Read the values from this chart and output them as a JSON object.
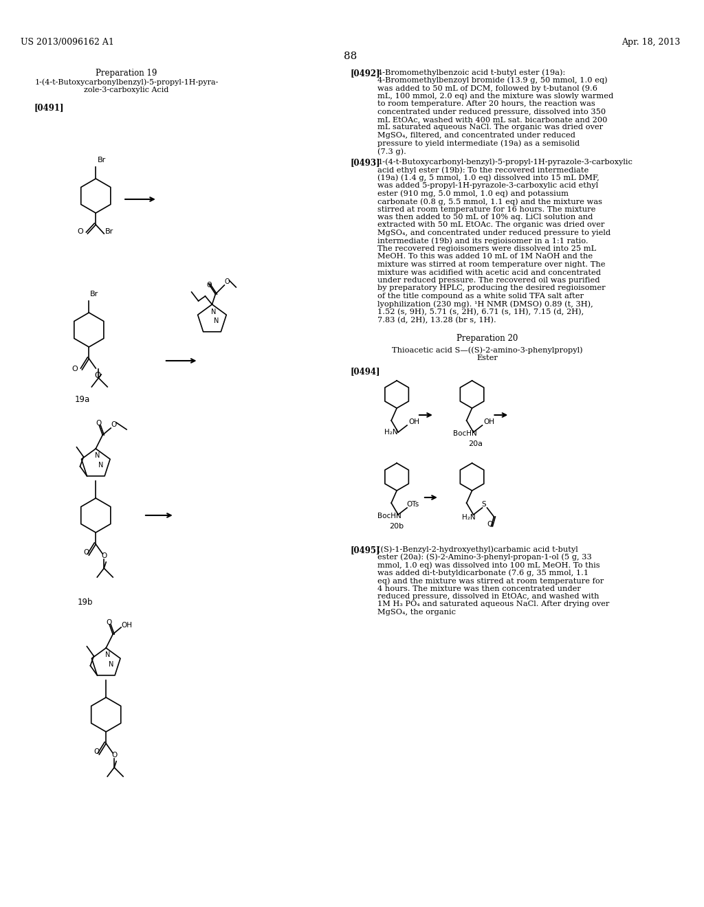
{
  "page_number": "88",
  "header_left": "US 2013/0096162 A1",
  "header_right": "Apr. 18, 2013",
  "background_color": "#ffffff",
  "text_color": "#000000",
  "prep19_title": "Preparation 19",
  "prep19_subtitle": "1-(4-t-Butoxycarbonylbenzyl)-5-propyl-1H-pyra-\nzole-3-carboxylic Acid",
  "prep19_tag": "[0491]",
  "prep20_title": "Preparation 20",
  "prep20_subtitle": "Thioacetic acid S—((S)-2-amino-3-phenylpropyl)\nEster",
  "prep20_tag": "[0494]",
  "para0492_tag": "[0492]",
  "para0492_text": "4-Bromomethylbenzoic acid t-butyl ester (19a): 4-Bromomethylbenzoyl bromide (13.9 g, 50 mmol, 1.0 eq) was added to 50 mL of DCM, followed by t-butanol (9.6 mL, 100 mmol, 2.0 eq) and the mixture was slowly warmed to room temperature. After 20 hours, the reaction was concentrated under reduced pressure, dissolved into 350 mL EtOAc, washed with 400 mL sat. bicarbonate and 200 mL saturated aqueous NaCl. The organic was dried over MgSO₄, filtered, and concentrated under reduced pressure to yield intermediate (19a) as a semisolid (7.3 g).",
  "para0493_tag": "[0493]",
  "para0493_text": "1-(4-t-Butoxycarbonyl-benzyl)-5-propyl-1H-pyrazole-3-carboxylic acid ethyl ester (19b): To the recovered intermediate (19a) (1.4 g, 5 mmol, 1.0 eq) dissolved into 15 mL DMF, was added 5-propyl-1H-pyrazole-3-carboxylic acid ethyl ester (910 mg, 5.0 mmol, 1.0 eq) and potassium carbonate (0.8 g, 5.5 mmol, 1.1 eq) and the mixture was stirred at room temperature for 16 hours. The mixture was then added to 50 mL of 10% aq. LiCl solution and extracted with 50 mL EtOAc. The organic was dried over MgSO₄, and concentrated under reduced pressure to yield intermediate (19b) and its regioisomer in a 1:1 ratio. The recovered regioisomers were dissolved into 25 mL MeOH. To this was added 10 mL of 1M NaOH and the mixture was stirred at room temperature over night. The mixture was acidified with acetic acid and concentrated under reduced pressure. The recovered oil was purified by preparatory HPLC, producing the desired regioisomer of the title compound as a white solid TFA salt after lyophilization (230 mg). ¹H NMR (DMSO) 0.89 (t, 3H), 1.52 (s, 9H), 5.71 (s, 2H), 6.71 (s, 1H), 7.15 (d, 2H), 7.83 (d, 2H), 13.28 (br s, 1H).",
  "para0495_tag": "[0495]",
  "para0495_text": "((S)-1-Benzyl-2-hydroxyethyl)carbamic acid t-butyl ester (20a): (S)-2-Amino-3-phenyl-propan-1-ol (5 g, 33 mmol, 1.0 eq) was dissolved into 100 mL MeOH. To this was added di-t-butyldicarbonate (7.6 g, 35 mmol, 1.1 eq) and the mixture was stirred at room temperature for 4 hours. The mixture was then concentrated under reduced pressure, dissolved in EtOAc, and washed with 1M H₃ PO₄ and saturated aqueous NaCl. After drying over MgSO₄, the organic",
  "label_19a": "19a",
  "label_19b": "19b",
  "label_20a": "20a",
  "label_20b": "20b"
}
